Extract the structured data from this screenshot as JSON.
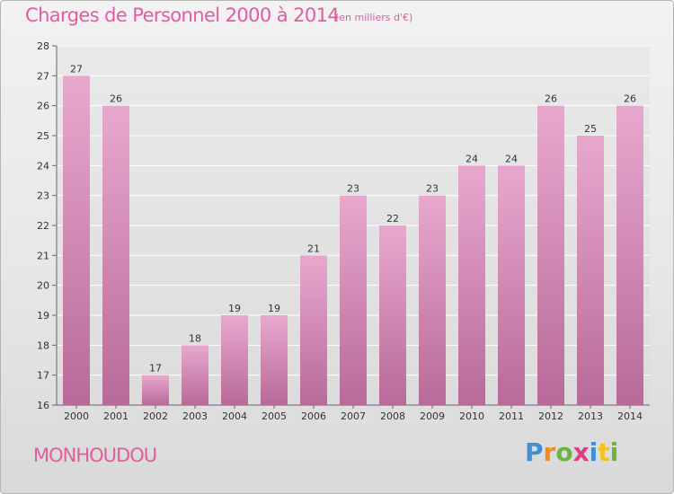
{
  "chart_data": {
    "type": "bar",
    "title": "Charges de Personnel 2000 à 2014",
    "subtitle": "(en milliers d'€)",
    "categories": [
      "2000",
      "2001",
      "2002",
      "2003",
      "2004",
      "2005",
      "2006",
      "2007",
      "2008",
      "2009",
      "2010",
      "2011",
      "2012",
      "2013",
      "2014"
    ],
    "values": [
      27,
      26,
      17,
      18,
      19,
      19,
      21,
      23,
      22,
      23,
      24,
      24,
      26,
      25,
      26
    ],
    "ylim": [
      16,
      28
    ],
    "yticks": [
      16,
      17,
      18,
      19,
      20,
      21,
      22,
      23,
      24,
      25,
      26,
      27,
      28
    ],
    "grid": true,
    "bar_color": "#d98fba"
  },
  "footer": {
    "commune": "MONHOUDOU",
    "brand": [
      "P",
      "r",
      "o",
      "x",
      "i",
      "t",
      "i"
    ],
    "brand_colors": [
      "#3f8fd2",
      "#f28b1b",
      "#6cb33f",
      "#e23b8a",
      "#3f8fd2",
      "#f2c21b",
      "#6cb33f"
    ]
  },
  "colors": {
    "accent": "#e15da1"
  }
}
